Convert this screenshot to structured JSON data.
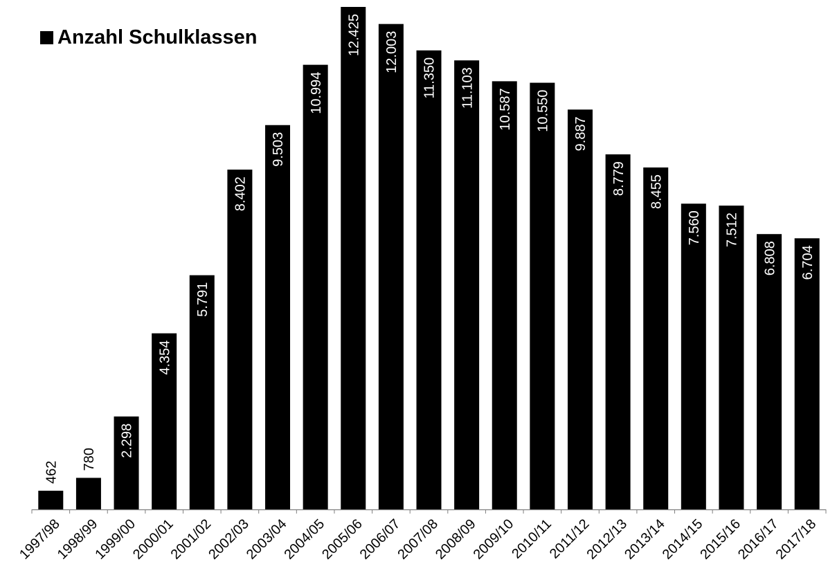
{
  "chart_data": {
    "type": "bar",
    "categories": [
      "1997/98",
      "1998/99",
      "1999/00",
      "2000/01",
      "2001/02",
      "2002/03",
      "2003/04",
      "2004/05",
      "2005/06",
      "2006/07",
      "2007/08",
      "2008/09",
      "2009/10",
      "2010/11",
      "2011/12",
      "2012/13",
      "2013/14",
      "2014/15",
      "2015/16",
      "2016/17",
      "2017/18"
    ],
    "series": [
      {
        "name": "Anzahl Schulklassen",
        "values": [
          462,
          780,
          2298,
          4354,
          5791,
          8402,
          9503,
          10994,
          12425,
          12003,
          11350,
          11103,
          10587,
          10550,
          9887,
          8779,
          8455,
          7560,
          7512,
          6808,
          6704
        ],
        "labels": [
          "462",
          "780",
          "2.298",
          "4.354",
          "5.791",
          "8.402",
          "9.503",
          "10.994",
          "12.425",
          "12.003",
          "11.350",
          "11.103",
          "10.587",
          "10.550",
          "9.887",
          "8.779",
          "8.455",
          "7.560",
          "7.512",
          "6.808",
          "6.704"
        ]
      }
    ],
    "ylim": [
      0,
      12425
    ],
    "grid": false,
    "legend": "top-left",
    "bar_color": "#000000",
    "label_color_inside": "#ffffff",
    "label_color_outside": "#000000"
  }
}
